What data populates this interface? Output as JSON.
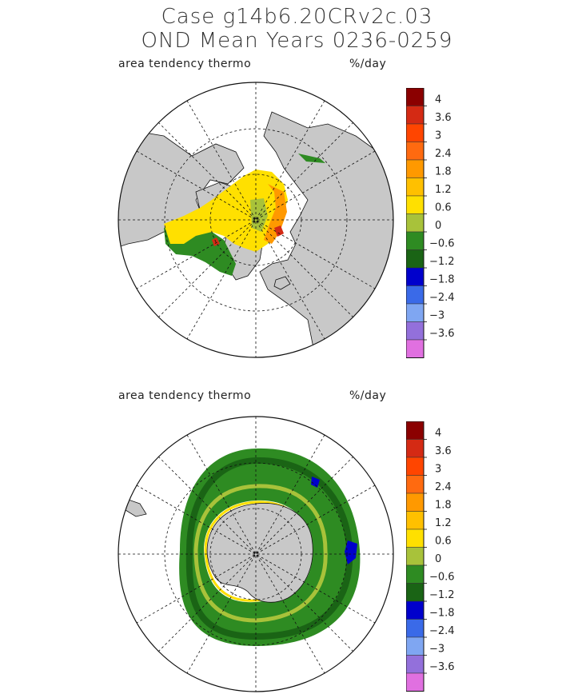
{
  "header": {
    "title_line1": "Case g14b6.20CRv2c.03",
    "title_line2": "OND Mean    Years 0236-0259"
  },
  "panels": [
    {
      "field_label": "area tendency thermo",
      "units": "%/day",
      "hemisphere": "north"
    },
    {
      "field_label": "area tendency thermo",
      "units": "%/day",
      "hemisphere": "south"
    }
  ],
  "colorbar": {
    "labels": [
      "4",
      "3.6",
      "3",
      "2.4",
      "1.8",
      "1.2",
      "0.6",
      "0",
      "-0.6",
      "-1.2",
      "-1.8",
      "-2.4",
      "-3",
      "-3.6"
    ],
    "colors": [
      "#8b0000",
      "#d42a14",
      "#ff4500",
      "#ff6a10",
      "#ff9900",
      "#ffc000",
      "#ffe000",
      "#a8c23a",
      "#2e8b22",
      "#1a6415",
      "#0000cc",
      "#3a6ae8",
      "#7fa6f2",
      "#9370db",
      "#e070e0"
    ]
  },
  "map_colors": {
    "land": "#c8c8c8",
    "ocean": "#ffffff",
    "coast": "#111111"
  }
}
